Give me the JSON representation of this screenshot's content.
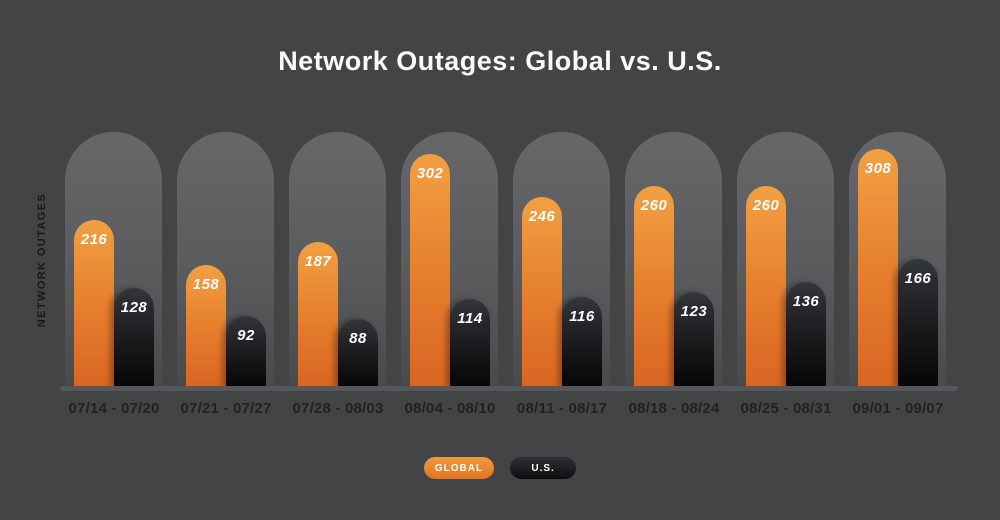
{
  "title": "Network Outages: Global vs. U.S.",
  "y_axis_label": "NETWORK OUTAGES",
  "legend": {
    "items": [
      {
        "label": "GLOBAL",
        "color": "#e8832f"
      },
      {
        "label": "U.S.",
        "color": "#17191b"
      }
    ]
  },
  "chart_data": {
    "type": "bar",
    "title": "Network Outages: Global vs. U.S.",
    "categories": [
      "07/14 - 07/20",
      "07/21 - 07/27",
      "07/28 - 08/03",
      "08/04 - 08/10",
      "08/11 - 08/17",
      "08/18 - 08/24",
      "08/25 - 08/31",
      "09/01 - 09/07"
    ],
    "series": [
      {
        "name": "GLOBAL",
        "values": [
          216,
          158,
          187,
          302,
          246,
          260,
          260,
          308
        ],
        "color_top": "#f2a044",
        "color_bottom": "#d96523"
      },
      {
        "name": "U.S.",
        "values": [
          128,
          92,
          88,
          114,
          116,
          123,
          136,
          166
        ],
        "color_top": "#33363a",
        "color_bottom": "#060607"
      }
    ],
    "xlabel": "",
    "ylabel": "NETWORK OUTAGES",
    "ylim": [
      0,
      330
    ],
    "grid": false,
    "legend_position": "bottom",
    "value_labels": true
  },
  "colors": {
    "background": "#434446",
    "pill_track_top": "#666769",
    "pill_track_bottom": "#494a4c",
    "baseline": "#56575a",
    "title_text": "#fafafa",
    "category_text": "#1f2123",
    "value_text": "#ffffff",
    "axis_text": "#17181a"
  }
}
